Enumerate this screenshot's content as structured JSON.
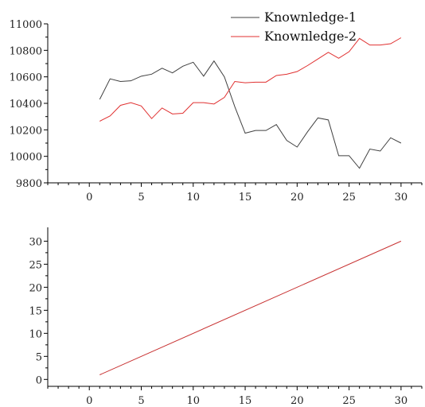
{
  "chart_data": [
    {
      "type": "line",
      "title": "",
      "xlabel": "",
      "ylabel": "",
      "xlim": [
        -4,
        32
      ],
      "ylim": [
        9800,
        11000
      ],
      "xticks": [
        0,
        5,
        10,
        15,
        20,
        25,
        30
      ],
      "xtick_labels": [
        "0",
        "5",
        "10",
        "15",
        "20",
        "25",
        "30"
      ],
      "yticks": [
        9800,
        10000,
        10200,
        10400,
        10600,
        10800,
        11000
      ],
      "ytick_labels": [
        "9800",
        "10000",
        "10200",
        "10400",
        "10600",
        "10800",
        "11000"
      ],
      "grid": false,
      "legend": "top-right",
      "x": [
        1,
        2,
        3,
        4,
        5,
        6,
        7,
        8,
        9,
        10,
        11,
        12,
        13,
        14,
        15,
        16,
        17,
        18,
        19,
        20,
        21,
        22,
        23,
        24,
        25,
        26,
        27,
        28,
        29,
        30
      ],
      "series": [
        {
          "name": "Knownledge-1",
          "color": "#404040",
          "values": [
            10430,
            10585,
            10565,
            10570,
            10605,
            10620,
            10665,
            10630,
            10680,
            10710,
            10605,
            10720,
            10600,
            10375,
            10175,
            10195,
            10195,
            10240,
            10120,
            10070,
            10185,
            10290,
            10275,
            10005,
            10005,
            9910,
            10055,
            10040,
            10140,
            10100
          ]
        },
        {
          "name": "Knownledge-2",
          "color": "#e03030",
          "values": [
            10265,
            10305,
            10385,
            10405,
            10380,
            10285,
            10365,
            10320,
            10325,
            10405,
            10405,
            10395,
            10445,
            10565,
            10555,
            10560,
            10560,
            10610,
            10620,
            10640,
            10685,
            10735,
            10785,
            10740,
            10790,
            10890,
            10840,
            10840,
            10850,
            10895
          ]
        }
      ]
    },
    {
      "type": "line",
      "title": "",
      "xlabel": "",
      "ylabel": "",
      "xlim": [
        -4,
        32
      ],
      "ylim": [
        -1.5,
        33
      ],
      "xticks": [
        0,
        5,
        10,
        15,
        20,
        25,
        30
      ],
      "xtick_labels": [
        "0",
        "5",
        "10",
        "15",
        "20",
        "25",
        "30"
      ],
      "yticks": [
        0,
        5,
        10,
        15,
        20,
        25,
        30
      ],
      "ytick_labels": [
        "0",
        "5",
        "10",
        "15",
        "20",
        "25",
        "30"
      ],
      "grid": false,
      "legend": "none",
      "x": [
        1,
        30
      ],
      "series": [
        {
          "color": "#c83232",
          "values": [
            1,
            30
          ]
        }
      ]
    }
  ]
}
